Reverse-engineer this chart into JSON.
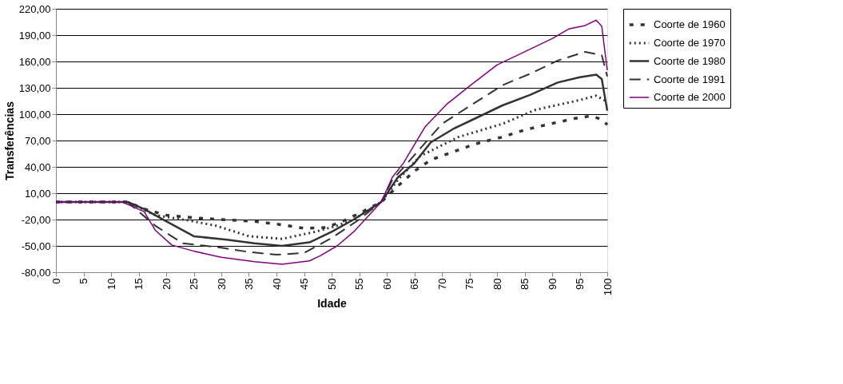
{
  "chart_data": {
    "type": "line",
    "xlabel": "Idade",
    "ylabel": "Transferências",
    "xlim": [
      0,
      100
    ],
    "xticks": [
      0,
      5,
      10,
      15,
      20,
      25,
      30,
      35,
      40,
      45,
      50,
      55,
      60,
      65,
      70,
      75,
      80,
      85,
      90,
      95,
      100
    ],
    "ylim": [
      -80,
      220
    ],
    "yticks": [
      {
        "value": -80,
        "label": "-80,00"
      },
      {
        "value": -50,
        "label": "-50,00"
      },
      {
        "value": -20,
        "label": "-20,00"
      },
      {
        "value": 10,
        "label": "10,00"
      },
      {
        "value": 40,
        "label": "40,00"
      },
      {
        "value": 70,
        "label": "70,00"
      },
      {
        "value": 100,
        "label": "100,00"
      },
      {
        "value": 130,
        "label": "130,00"
      },
      {
        "value": 160,
        "label": "160,00"
      },
      {
        "value": 190,
        "label": "190,00"
      },
      {
        "value": 220,
        "label": "220,00"
      }
    ],
    "grid": "y",
    "legend": "right",
    "marker": "none",
    "series": [
      {
        "name": "Coorte de 1960",
        "color": "#333333",
        "line_style": "dashed",
        "x": [
          0,
          13,
          16,
          20,
          25,
          30,
          36,
          41,
          45,
          49,
          52,
          55,
          59,
          62,
          65,
          68,
          72,
          76,
          81,
          85,
          89,
          94,
          97,
          99,
          100
        ],
        "values": [
          0,
          0,
          -8,
          -15,
          -18,
          -20,
          -22,
          -26,
          -30,
          -29,
          -22,
          -13,
          0,
          18,
          35,
          48,
          57,
          66,
          74,
          82,
          88,
          95,
          98,
          94,
          88
        ]
      },
      {
        "name": "Coorte de 1970",
        "color": "#333333",
        "line_style": "dotted",
        "x": [
          0,
          13,
          18,
          24,
          29,
          35,
          41,
          47,
          51,
          54,
          59,
          62,
          66,
          73,
          81,
          87,
          95,
          98,
          100
        ],
        "values": [
          0,
          0,
          -15,
          -21,
          -27,
          -39,
          -42,
          -34,
          -27,
          -20,
          0,
          25,
          52,
          74,
          89,
          105,
          116,
          121,
          114
        ]
      },
      {
        "name": "Coorte de 1980",
        "color": "#333333",
        "line_style": "solid",
        "x": [
          0,
          13,
          16,
          20,
          25,
          31,
          36,
          41,
          46,
          50,
          54,
          59,
          62,
          65,
          68,
          72,
          76,
          81,
          86,
          91,
          95,
          98,
          99,
          100
        ],
        "values": [
          0,
          0,
          -8,
          -22,
          -39,
          -43,
          -47,
          -50,
          -46,
          -34,
          -20,
          0,
          28,
          44,
          68,
          83,
          95,
          110,
          122,
          136,
          142,
          145,
          140,
          104
        ]
      },
      {
        "name": "Coorte de 1991",
        "color": "#333333",
        "line_style": "dashed",
        "x": [
          0,
          13,
          18,
          23,
          30,
          35,
          40,
          45,
          50,
          55,
          59,
          61,
          64,
          70,
          76,
          81,
          86,
          91,
          96,
          99,
          100
        ],
        "values": [
          0,
          0,
          -27,
          -47,
          -52,
          -57,
          -60,
          -58,
          -41,
          -20,
          0,
          25,
          46,
          89,
          113,
          133,
          146,
          161,
          171,
          167,
          143
        ]
      },
      {
        "name": "Coorte de 2000",
        "color": "#800080",
        "line_style": "solid",
        "x": [
          0,
          12,
          16,
          18,
          21,
          25,
          30,
          36,
          41,
          46,
          48,
          51,
          54,
          59,
          61,
          63,
          67,
          71,
          75,
          80,
          85,
          90,
          93,
          96,
          98,
          99,
          100
        ],
        "values": [
          0,
          0,
          -11,
          -32,
          -49,
          -56,
          -63,
          -68,
          -71,
          -67,
          -61,
          -50,
          -34,
          0,
          28,
          44,
          86,
          112,
          132,
          156,
          171,
          186,
          197,
          201,
          207,
          200,
          150
        ]
      }
    ]
  }
}
